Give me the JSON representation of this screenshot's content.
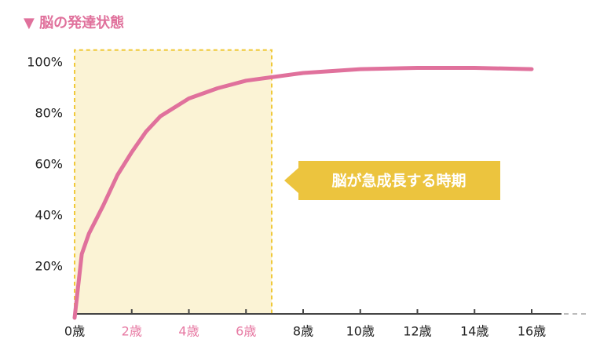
{
  "chart_data": {
    "type": "line",
    "title": "▼ 脳の発達状態",
    "x": [
      0,
      0.25,
      0.5,
      1,
      1.5,
      2,
      2.5,
      3,
      4,
      5,
      6,
      7,
      8,
      10,
      12,
      13,
      14,
      16
    ],
    "series": [
      {
        "name": "脳の発達状態",
        "color": "#e0719c",
        "values": [
          0,
          25,
          33,
          44,
          56,
          65,
          73,
          79,
          86,
          90,
          93,
          94.5,
          96,
          97.5,
          98,
          98,
          98,
          97.5
        ]
      }
    ],
    "xlim": [
      0,
      17.5
    ],
    "ylim": [
      0,
      105
    ],
    "xticks": [
      {
        "value": 0,
        "label": "0歳"
      },
      {
        "value": 2,
        "label": "2歳"
      },
      {
        "value": 4,
        "label": "4歳"
      },
      {
        "value": 6,
        "label": "6歳"
      },
      {
        "value": 8,
        "label": "8歳"
      },
      {
        "value": 10,
        "label": "10歳"
      },
      {
        "value": 12,
        "label": "12歳"
      },
      {
        "value": 14,
        "label": "14歳"
      },
      {
        "value": 16,
        "label": "16歳"
      }
    ],
    "yticks": [
      {
        "value": 20,
        "label": "20%"
      },
      {
        "value": 40,
        "label": "40%"
      },
      {
        "value": 60,
        "label": "60%"
      },
      {
        "value": 80,
        "label": "80%"
      },
      {
        "value": 100,
        "label": "100%"
      }
    ],
    "highlight": {
      "x": [
        0,
        6.9
      ],
      "label": "脳が急成長する時期",
      "fill": "#fbf3d5",
      "border": "#f0c93a",
      "label_color": "#ecc43e",
      "tick_color": "#e77aa3"
    }
  }
}
